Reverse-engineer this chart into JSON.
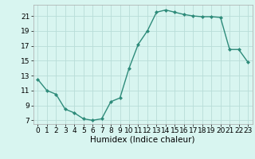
{
  "x": [
    0,
    1,
    2,
    3,
    4,
    5,
    6,
    7,
    8,
    9,
    10,
    11,
    12,
    13,
    14,
    15,
    16,
    17,
    18,
    19,
    20,
    21,
    22,
    23
  ],
  "y": [
    12.5,
    11.0,
    10.5,
    8.5,
    8.0,
    7.2,
    7.0,
    7.2,
    9.5,
    10.0,
    14.0,
    17.2,
    19.0,
    21.5,
    21.8,
    21.5,
    21.2,
    21.0,
    20.9,
    20.9,
    20.8,
    16.5,
    16.5,
    14.8
  ],
  "line_color": "#2e8b7a",
  "marker": "D",
  "marker_size": 2.0,
  "background_color": "#d8f5f0",
  "grid_color": "#b8ddd8",
  "xlabel": "Humidex (Indice chaleur)",
  "ylim": [
    6.5,
    22.5
  ],
  "xlim": [
    -0.5,
    23.5
  ],
  "yticks": [
    7,
    9,
    11,
    13,
    15,
    17,
    19,
    21
  ],
  "xticks": [
    0,
    1,
    2,
    3,
    4,
    5,
    6,
    7,
    8,
    9,
    10,
    11,
    12,
    13,
    14,
    15,
    16,
    17,
    18,
    19,
    20,
    21,
    22,
    23
  ],
  "tick_fontsize": 6.5,
  "xlabel_fontsize": 7.5,
  "line_width": 1.0
}
